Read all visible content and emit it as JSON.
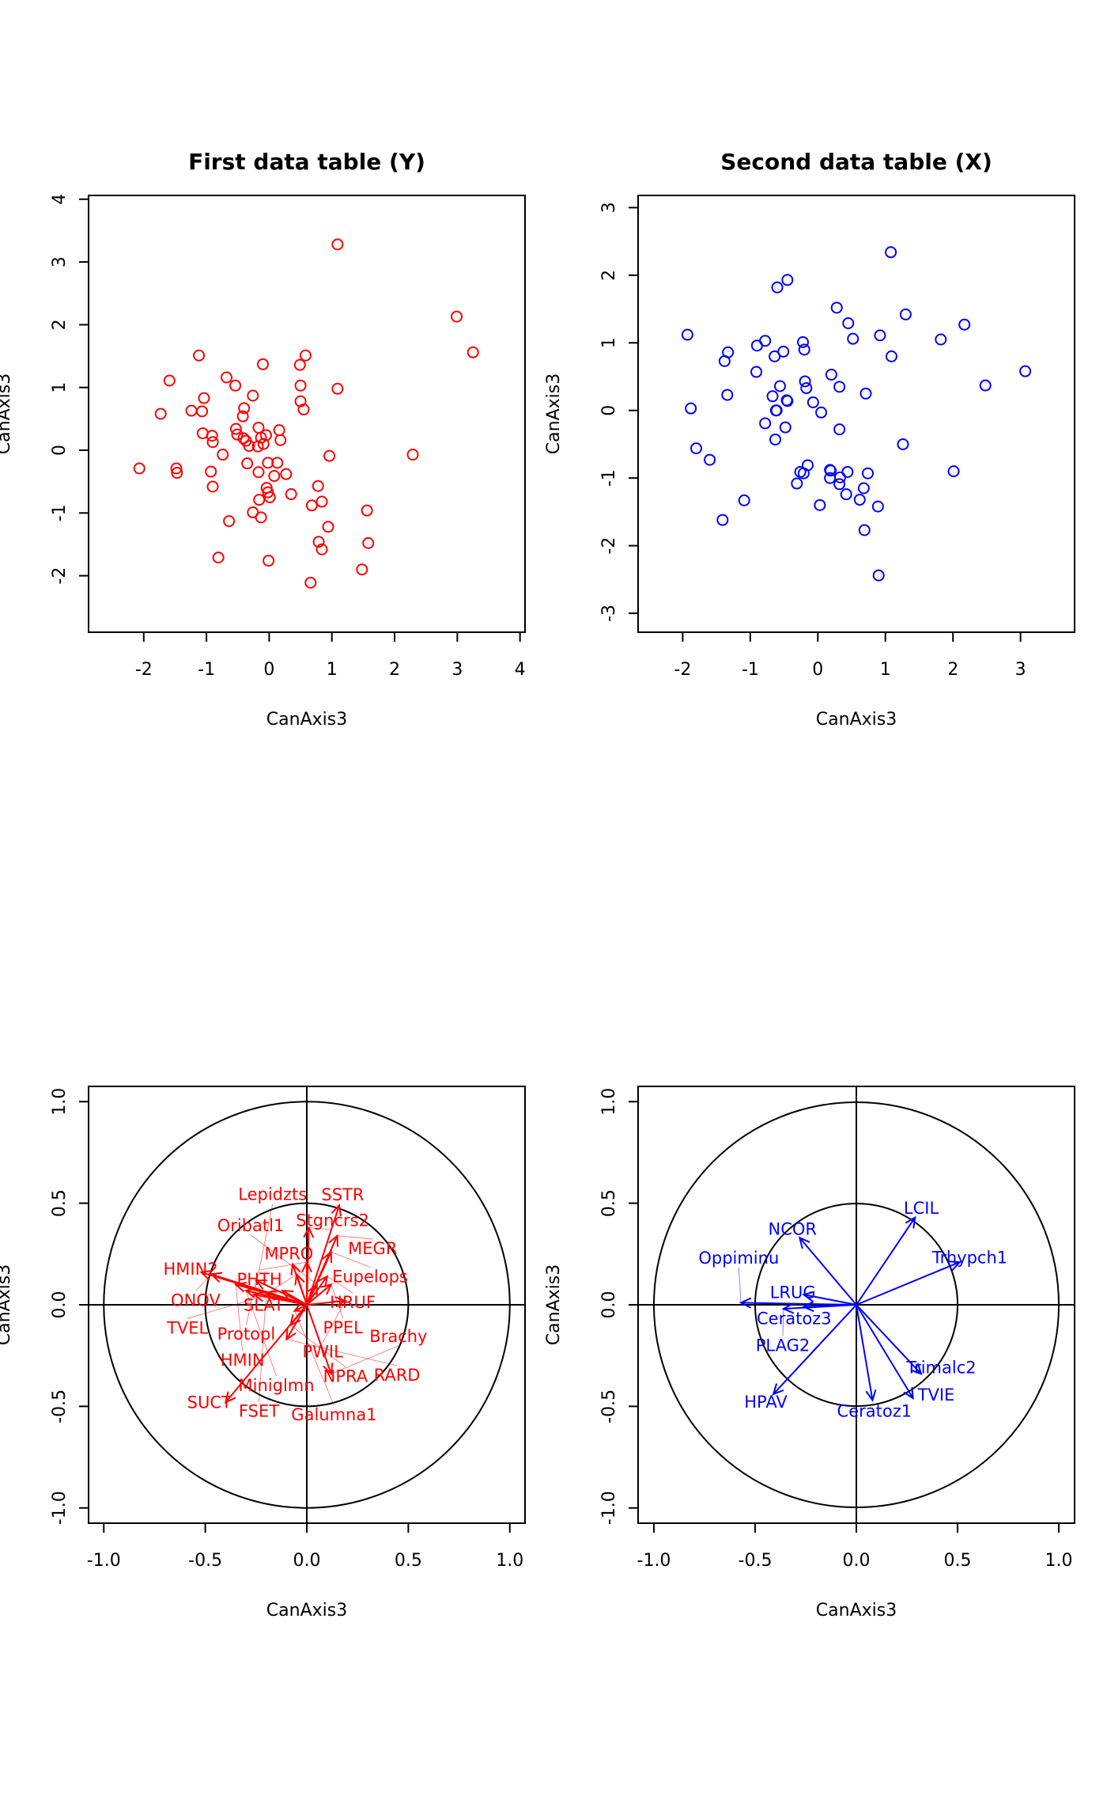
{
  "chart_data": [
    {
      "type": "scatter",
      "title": "First data table (Y)",
      "xlabel": "CanAxis3",
      "ylabel": "CanAxis3",
      "xlim": [
        -2.88,
        4.08
      ],
      "ylim": [
        -2.9,
        4.06
      ],
      "xticks": [
        -2,
        -1,
        0,
        1,
        2,
        3,
        4
      ],
      "yticks": [
        -2,
        -1,
        0,
        1,
        2,
        3,
        4
      ],
      "color": "#ff0000",
      "points": [
        [
          1.09,
          3.28
        ],
        [
          2.99,
          2.13
        ],
        [
          3.25,
          1.56
        ],
        [
          -1.12,
          1.51
        ],
        [
          -0.1,
          1.37
        ],
        [
          0.58,
          1.51
        ],
        [
          0.49,
          1.36
        ],
        [
          -1.59,
          1.11
        ],
        [
          -0.68,
          1.16
        ],
        [
          -0.54,
          1.03
        ],
        [
          0.5,
          1.03
        ],
        [
          1.09,
          0.98
        ],
        [
          -0.26,
          0.87
        ],
        [
          -1.04,
          0.83
        ],
        [
          0.5,
          0.78
        ],
        [
          0.55,
          0.65
        ],
        [
          -1.73,
          0.58
        ],
        [
          -1.24,
          0.63
        ],
        [
          -1.07,
          0.62
        ],
        [
          -0.4,
          0.67
        ],
        [
          -0.42,
          0.54
        ],
        [
          -0.53,
          0.34
        ],
        [
          -0.17,
          0.36
        ],
        [
          0.16,
          0.32
        ],
        [
          -1.06,
          0.27
        ],
        [
          -0.91,
          0.23
        ],
        [
          -0.9,
          0.13
        ],
        [
          -0.51,
          0.25
        ],
        [
          -0.41,
          0.19
        ],
        [
          -0.37,
          0.15
        ],
        [
          -0.32,
          0.07
        ],
        [
          -0.18,
          0.06
        ],
        [
          -0.13,
          0.2
        ],
        [
          -0.05,
          0.24
        ],
        [
          -0.09,
          0.1
        ],
        [
          0.18,
          0.16
        ],
        [
          -0.74,
          -0.07
        ],
        [
          0.96,
          -0.09
        ],
        [
          2.29,
          -0.07
        ],
        [
          -2.07,
          -0.29
        ],
        [
          -1.48,
          -0.29
        ],
        [
          -1.47,
          -0.36
        ],
        [
          -0.35,
          -0.21
        ],
        [
          -0.02,
          -0.2
        ],
        [
          0.13,
          -0.2
        ],
        [
          -0.93,
          -0.34
        ],
        [
          -0.17,
          -0.35
        ],
        [
          0.08,
          -0.41
        ],
        [
          0.27,
          -0.38
        ],
        [
          -0.9,
          -0.58
        ],
        [
          0.78,
          -0.57
        ],
        [
          -0.04,
          -0.6
        ],
        [
          -0.02,
          -0.67
        ],
        [
          0.01,
          -0.75
        ],
        [
          0.35,
          -0.7
        ],
        [
          -0.16,
          -0.79
        ],
        [
          0.68,
          -0.88
        ],
        [
          0.84,
          -0.82
        ],
        [
          1.56,
          -0.96
        ],
        [
          -0.26,
          -0.99
        ],
        [
          -0.13,
          -1.07
        ],
        [
          -0.64,
          -1.13
        ],
        [
          0.94,
          -1.22
        ],
        [
          0.79,
          -1.46
        ],
        [
          0.84,
          -1.58
        ],
        [
          1.58,
          -1.48
        ],
        [
          -0.81,
          -1.71
        ],
        [
          -0.01,
          -1.76
        ],
        [
          1.48,
          -1.9
        ],
        [
          0.66,
          -2.11
        ]
      ]
    },
    {
      "type": "scatter",
      "title": "Second data table (X)",
      "xlabel": "CanAxis3",
      "ylabel": "CanAxis3",
      "xlim": [
        -2.66,
        3.8
      ],
      "ylim": [
        -3.28,
        3.18
      ],
      "xticks": [
        -2,
        -1,
        0,
        1,
        2,
        3
      ],
      "yticks": [
        -3,
        -2,
        -1,
        0,
        1,
        2,
        3
      ],
      "color": "#0000ff",
      "points": [
        [
          1.08,
          2.34
        ],
        [
          -0.45,
          1.93
        ],
        [
          -0.6,
          1.82
        ],
        [
          0.28,
          1.52
        ],
        [
          1.3,
          1.42
        ],
        [
          0.45,
          1.29
        ],
        [
          2.17,
          1.27
        ],
        [
          -1.93,
          1.12
        ],
        [
          0.52,
          1.06
        ],
        [
          0.92,
          1.11
        ],
        [
          1.82,
          1.05
        ],
        [
          -0.78,
          1.03
        ],
        [
          -0.9,
          0.96
        ],
        [
          -0.22,
          1.01
        ],
        [
          -0.2,
          0.9
        ],
        [
          -0.51,
          0.87
        ],
        [
          -1.33,
          0.86
        ],
        [
          -0.64,
          0.8
        ],
        [
          -1.38,
          0.73
        ],
        [
          1.09,
          0.8
        ],
        [
          -0.91,
          0.57
        ],
        [
          3.07,
          0.58
        ],
        [
          0.2,
          0.53
        ],
        [
          -0.19,
          0.43
        ],
        [
          -0.17,
          0.33
        ],
        [
          0.32,
          0.35
        ],
        [
          -0.56,
          0.36
        ],
        [
          2.48,
          0.37
        ],
        [
          0.71,
          0.25
        ],
        [
          -1.34,
          0.23
        ],
        [
          -0.67,
          0.21
        ],
        [
          -0.46,
          0.15
        ],
        [
          -0.45,
          0.14
        ],
        [
          -0.07,
          0.12
        ],
        [
          -1.88,
          0.03
        ],
        [
          -0.62,
          0.0
        ],
        [
          -0.61,
          0.0
        ],
        [
          0.05,
          -0.03
        ],
        [
          -0.78,
          -0.19
        ],
        [
          -0.48,
          -0.25
        ],
        [
          0.32,
          -0.28
        ],
        [
          -0.63,
          -0.43
        ],
        [
          1.26,
          -0.5
        ],
        [
          -1.8,
          -0.56
        ],
        [
          -1.6,
          -0.73
        ],
        [
          -0.15,
          -0.81
        ],
        [
          -0.26,
          -0.91
        ],
        [
          -0.21,
          -0.93
        ],
        [
          0.18,
          -0.88
        ],
        [
          0.19,
          -0.89
        ],
        [
          0.44,
          -0.91
        ],
        [
          0.74,
          -0.93
        ],
        [
          2.01,
          -0.9
        ],
        [
          0.18,
          -1.0
        ],
        [
          0.33,
          -0.99
        ],
        [
          0.32,
          -1.09
        ],
        [
          -0.31,
          -1.08
        ],
        [
          0.68,
          -1.15
        ],
        [
          0.42,
          -1.24
        ],
        [
          0.62,
          -1.32
        ],
        [
          -1.09,
          -1.33
        ],
        [
          0.03,
          -1.4
        ],
        [
          0.89,
          -1.42
        ],
        [
          -1.41,
          -1.62
        ],
        [
          0.69,
          -1.77
        ],
        [
          0.9,
          -2.44
        ]
      ]
    },
    {
      "type": "arrow",
      "xlabel": "CanAxis3",
      "ylabel": "CanAxis3",
      "xlim": [
        -1.075,
        1.075
      ],
      "ylim": [
        -1.075,
        1.075
      ],
      "xticks": [
        -1.0,
        -0.5,
        0.0,
        0.5,
        1.0
      ],
      "yticks": [
        -1.0,
        -0.5,
        0.0,
        0.5,
        1.0
      ],
      "circles": [
        1.0,
        0.5
      ],
      "color": "#ff0000",
      "arrows": [
        {
          "label": "SSTR",
          "x": 0.16,
          "y": 0.49
        },
        {
          "label": "Stgncrs2",
          "x": 0.01,
          "y": 0.38
        },
        {
          "label": "MEGR",
          "x": 0.15,
          "y": 0.34
        },
        {
          "label": "Eupelops",
          "x": 0.12,
          "y": 0.26
        },
        {
          "label": "MPRO",
          "x": -0.07,
          "y": 0.2
        },
        {
          "label": "PHTH",
          "x": 0.0,
          "y": 0.21
        },
        {
          "label": "SLAT",
          "x": -0.05,
          "y": 0.15
        },
        {
          "label": "HRUF",
          "x": 0.1,
          "y": 0.14
        },
        {
          "label": "PPEL",
          "x": 0.12,
          "y": 0.1
        },
        {
          "label": "Oribatl1",
          "x": 0.05,
          "y": 0.1
        },
        {
          "label": "HMIN2",
          "x": -0.52,
          "y": 0.16
        },
        {
          "label": "ONOV",
          "x": -0.47,
          "y": 0.15
        },
        {
          "label": "Protopl",
          "x": -0.25,
          "y": 0.12
        },
        {
          "label": "HMIN",
          "x": -0.35,
          "y": 0.1
        },
        {
          "label": "Miniglmn",
          "x": -0.3,
          "y": 0.07
        },
        {
          "label": "Lepidzts",
          "x": -0.26,
          "y": 0.05
        },
        {
          "label": "FSET",
          "x": -0.2,
          "y": 0.06
        },
        {
          "label": "TVEL",
          "x": -0.12,
          "y": 0.07
        },
        {
          "label": "PWIL",
          "x": 0.19,
          "y": 0.02
        },
        {
          "label": "Galumna1",
          "x": -0.06,
          "y": -0.03
        },
        {
          "label": "NPRA",
          "x": -0.08,
          "y": -0.1
        },
        {
          "label": "RARD",
          "x": -0.1,
          "y": -0.17
        },
        {
          "label": "Brachy",
          "x": 0.12,
          "y": -0.34
        },
        {
          "label": "SUCT",
          "x": -0.4,
          "y": -0.48
        }
      ]
    },
    {
      "type": "arrow",
      "xlabel": "CanAxis3",
      "ylabel": "CanAxis3",
      "xlim": [
        -1.078,
        1.078
      ],
      "ylim": [
        -1.075,
        1.075
      ],
      "xticks": [
        -1.0,
        -0.5,
        0.0,
        0.5,
        1.0
      ],
      "yticks": [
        -1.0,
        -0.5,
        0.0,
        0.5,
        1.0
      ],
      "circles": [
        1.0,
        0.5
      ],
      "color": "#0000ff",
      "arrows": [
        {
          "label": "LCIL",
          "x": 0.29,
          "y": 0.43
        },
        {
          "label": "Trhypch1",
          "x": 0.51,
          "y": 0.21
        },
        {
          "label": "NCOR",
          "x": -0.28,
          "y": 0.33
        },
        {
          "label": "LRUG",
          "x": -0.26,
          "y": 0.05
        },
        {
          "label": "Ceratoz3",
          "x": -0.26,
          "y": -0.01
        },
        {
          "label": "Oppiminu",
          "x": -0.57,
          "y": 0.01
        },
        {
          "label": "PLAG2",
          "x": -0.36,
          "y": -0.02
        },
        {
          "label": "HPAV",
          "x": -0.41,
          "y": -0.44
        },
        {
          "label": "Ceratoz1",
          "x": 0.08,
          "y": -0.47
        },
        {
          "label": "TVIE",
          "x": 0.28,
          "y": -0.46
        },
        {
          "label": "Trimalc2",
          "x": 0.32,
          "y": -0.34
        }
      ]
    }
  ]
}
